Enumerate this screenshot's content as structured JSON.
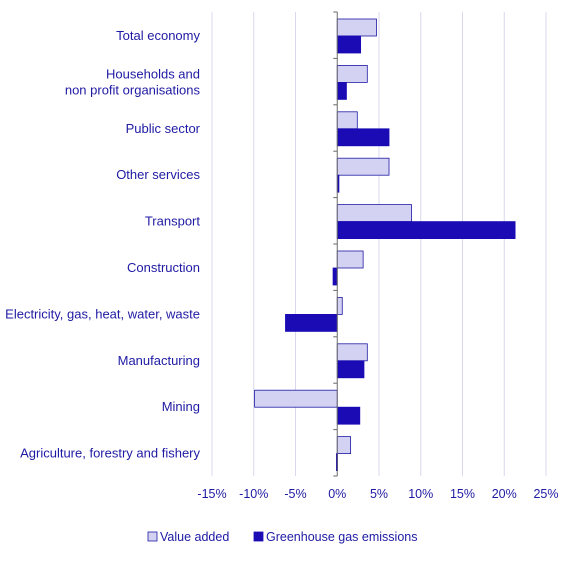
{
  "chart_data": {
    "type": "bar",
    "orientation": "horizontal",
    "categories": [
      [
        "Total economy"
      ],
      [
        "Households and",
        "non profit organisations"
      ],
      [
        "Public sector"
      ],
      [
        "Other services"
      ],
      [
        "Transport"
      ],
      [
        "Construction"
      ],
      [
        "Electricity, gas, heat, water, waste"
      ],
      [
        "Manufacturing"
      ],
      [
        "Mining"
      ],
      [
        "Agriculture, forestry and fishery"
      ]
    ],
    "series": [
      {
        "name": "Value added",
        "color": "#d4d2f2",
        "stroke": "#1f1aa3",
        "values": [
          4.7,
          3.6,
          2.4,
          6.2,
          8.9,
          3.1,
          0.6,
          3.6,
          -9.9,
          1.6
        ]
      },
      {
        "name": "Greenhouse gas emissions",
        "color": "#1a0bb5",
        "stroke": "#1a0bb5",
        "values": [
          2.8,
          1.1,
          6.2,
          0.2,
          21.3,
          -0.5,
          -6.2,
          3.2,
          2.7,
          -0.1
        ]
      }
    ],
    "xticks": [
      "-15%",
      "-10%",
      "-5%",
      "0%",
      "5%",
      "10%",
      "15%",
      "20%",
      "25%"
    ],
    "xlim": [
      -15,
      25
    ],
    "grid": "vertical",
    "legend_position": "bottom"
  }
}
